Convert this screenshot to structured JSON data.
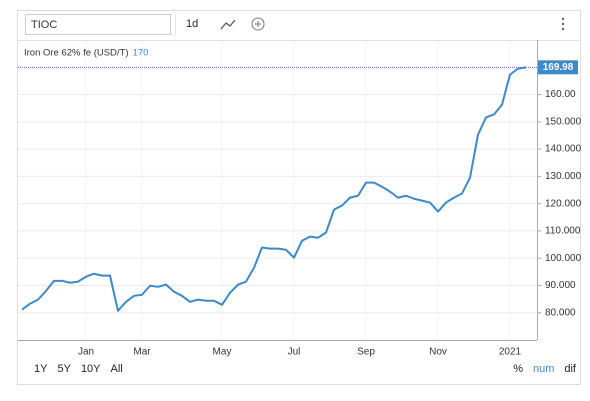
{
  "toolbar": {
    "symbol": "TIOC",
    "interval": "1d"
  },
  "chart_data": {
    "type": "line",
    "legend": {
      "name": "Iron Ore 62% fe (USD/T)",
      "value": 170
    },
    "last_value": 169.98,
    "categories": [
      null,
      null,
      null,
      null,
      null,
      null,
      null,
      null,
      "Jan",
      null,
      null,
      null,
      null,
      null,
      null,
      "Mar",
      null,
      null,
      null,
      null,
      null,
      null,
      null,
      null,
      null,
      "May",
      null,
      null,
      null,
      null,
      null,
      null,
      null,
      null,
      "Jul",
      null,
      null,
      null,
      null,
      null,
      null,
      null,
      null,
      "Sep",
      null,
      null,
      null,
      null,
      null,
      null,
      null,
      null,
      "Nov",
      null,
      null,
      null,
      null,
      null,
      null,
      null,
      null,
      "2021",
      null,
      null
    ],
    "series": [
      {
        "name": "Iron Ore 62% fe (USD/T)",
        "color": "#3d89c9",
        "values": [
          81.1,
          83.3,
          84.8,
          88,
          91.7,
          91.7,
          91,
          91.4,
          93.2,
          94.3,
          93.6,
          93.6,
          80.7,
          84,
          86.2,
          86.6,
          89.9,
          89.5,
          90.3,
          87.7,
          86.2,
          84,
          84.8,
          84.4,
          84.4,
          82.9,
          87.3,
          90.3,
          91.4,
          96.5,
          103.9,
          103.5,
          103.5,
          103.1,
          100.2,
          106.4,
          107.9,
          107.5,
          109.4,
          117.8,
          119.3,
          122.2,
          122.9,
          127.7,
          127.7,
          126.2,
          124.4,
          122.2,
          122.9,
          121.8,
          121.1,
          120.4,
          117.1,
          120.4,
          122.2,
          123.7,
          129.5,
          145.3,
          151.6,
          152.7,
          156.3,
          167.3,
          169.5,
          169.98
        ]
      }
    ],
    "ylim": [
      70,
      180
    ],
    "yticks": [
      {
        "value": 80,
        "label": "80.000"
      },
      {
        "value": 90,
        "label": "90.000"
      },
      {
        "value": 100,
        "label": "100.000"
      },
      {
        "value": 110,
        "label": "110.000"
      },
      {
        "value": 120,
        "label": "120.000"
      },
      {
        "value": 130,
        "label": "130.000"
      },
      {
        "value": 140,
        "label": "140.000"
      },
      {
        "value": 150,
        "label": "150.000"
      },
      {
        "value": 160,
        "label": "160.00"
      }
    ],
    "grid": true
  },
  "ranges": [
    "1Y",
    "5Y",
    "10Y",
    "All"
  ],
  "modes": [
    "%",
    "num",
    "dif"
  ]
}
